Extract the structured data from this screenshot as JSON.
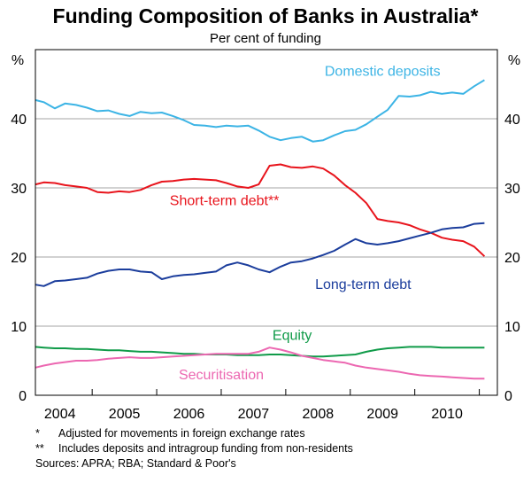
{
  "chart_data": {
    "type": "line",
    "title": "Funding Composition of Banks in Australia*",
    "subtitle": "Per cent of funding",
    "y_unit": "%",
    "ylim": [
      0,
      50
    ],
    "y_ticks": [
      0,
      10,
      20,
      30,
      40
    ],
    "xlim": [
      2003.62,
      2010.78
    ],
    "x_ticks": [
      {
        "value": 2004,
        "label": "2004"
      },
      {
        "value": 2005,
        "label": "2005"
      },
      {
        "value": 2006,
        "label": "2006"
      },
      {
        "value": 2007,
        "label": "2007"
      },
      {
        "value": 2008,
        "label": "2008"
      },
      {
        "value": 2009,
        "label": "2009"
      },
      {
        "value": 2010,
        "label": "2010"
      }
    ],
    "gridlines": {
      "horizontal": [
        10,
        20,
        30,
        40,
        50
      ],
      "vertical_year_separators": [
        2004.5,
        2005.5,
        2006.5,
        2007.5,
        2008.5,
        2009.5,
        2010.5
      ]
    },
    "legend": "inline labels",
    "series": [
      {
        "name": "Domestic deposits",
        "color": "#3cb4e5",
        "label_pos": [
          2009.0,
          46.2
        ],
        "x": [
          2003.62,
          2003.75,
          2003.92,
          2004.08,
          2004.25,
          2004.42,
          2004.58,
          2004.75,
          2004.92,
          2005.08,
          2005.25,
          2005.42,
          2005.58,
          2005.75,
          2005.92,
          2006.08,
          2006.25,
          2006.42,
          2006.58,
          2006.75,
          2006.92,
          2007.08,
          2007.25,
          2007.42,
          2007.58,
          2007.75,
          2007.92,
          2008.08,
          2008.25,
          2008.42,
          2008.58,
          2008.75,
          2008.92,
          2009.08,
          2009.25,
          2009.42,
          2009.58,
          2009.75,
          2009.92,
          2010.08,
          2010.25,
          2010.42,
          2010.58
        ],
        "values": [
          42.7,
          42.4,
          41.5,
          42.2,
          42.0,
          41.6,
          41.1,
          41.2,
          40.7,
          40.4,
          41.0,
          40.8,
          40.9,
          40.4,
          39.8,
          39.1,
          39.0,
          38.8,
          39.0,
          38.9,
          39.0,
          38.3,
          37.4,
          36.9,
          37.2,
          37.4,
          36.7,
          36.9,
          37.6,
          38.2,
          38.4,
          39.2,
          40.3,
          41.3,
          43.3,
          43.2,
          43.4,
          43.9,
          43.6,
          43.8,
          43.6,
          44.7,
          45.6
        ]
      },
      {
        "name": "Short-term debt**",
        "color": "#e8141c",
        "label_pos": [
          2006.55,
          27.5
        ],
        "x": [
          2003.62,
          2003.75,
          2003.92,
          2004.08,
          2004.25,
          2004.42,
          2004.58,
          2004.75,
          2004.92,
          2005.08,
          2005.25,
          2005.42,
          2005.58,
          2005.75,
          2005.92,
          2006.08,
          2006.25,
          2006.42,
          2006.58,
          2006.75,
          2006.92,
          2007.08,
          2007.25,
          2007.42,
          2007.58,
          2007.75,
          2007.92,
          2008.08,
          2008.25,
          2008.42,
          2008.58,
          2008.75,
          2008.92,
          2009.08,
          2009.25,
          2009.42,
          2009.58,
          2009.75,
          2009.92,
          2010.08,
          2010.25,
          2010.42,
          2010.58
        ],
        "values": [
          30.5,
          30.8,
          30.7,
          30.4,
          30.2,
          30.0,
          29.4,
          29.3,
          29.5,
          29.4,
          29.7,
          30.4,
          30.9,
          31.0,
          31.2,
          31.3,
          31.2,
          31.1,
          30.7,
          30.2,
          30.0,
          30.5,
          33.2,
          33.4,
          33.0,
          32.9,
          33.1,
          32.8,
          31.8,
          30.4,
          29.3,
          27.8,
          25.5,
          25.2,
          25.0,
          24.6,
          24.0,
          23.5,
          22.8,
          22.5,
          22.3,
          21.5,
          20.1
        ]
      },
      {
        "name": "Long-term debt",
        "color": "#1b3d9c",
        "label_pos": [
          2008.7,
          15.4
        ],
        "x": [
          2003.62,
          2003.75,
          2003.92,
          2004.08,
          2004.25,
          2004.42,
          2004.58,
          2004.75,
          2004.92,
          2005.08,
          2005.25,
          2005.42,
          2005.58,
          2005.75,
          2005.92,
          2006.08,
          2006.25,
          2006.42,
          2006.58,
          2006.75,
          2006.92,
          2007.08,
          2007.25,
          2007.42,
          2007.58,
          2007.75,
          2007.92,
          2008.08,
          2008.25,
          2008.42,
          2008.58,
          2008.75,
          2008.92,
          2009.08,
          2009.25,
          2009.42,
          2009.58,
          2009.75,
          2009.92,
          2010.08,
          2010.25,
          2010.42,
          2010.58
        ],
        "values": [
          16.0,
          15.8,
          16.5,
          16.6,
          16.8,
          17.0,
          17.6,
          18.0,
          18.2,
          18.2,
          17.9,
          17.8,
          16.8,
          17.2,
          17.4,
          17.5,
          17.7,
          17.9,
          18.8,
          19.2,
          18.8,
          18.2,
          17.8,
          18.6,
          19.2,
          19.4,
          19.8,
          20.3,
          20.9,
          21.8,
          22.6,
          22.0,
          21.8,
          22.0,
          22.3,
          22.7,
          23.1,
          23.5,
          24.0,
          24.2,
          24.3,
          24.8,
          24.9
        ]
      },
      {
        "name": "Equity",
        "color": "#109b49",
        "label_pos": [
          2007.6,
          8.0
        ],
        "x": [
          2003.62,
          2003.75,
          2003.92,
          2004.08,
          2004.25,
          2004.42,
          2004.58,
          2004.75,
          2004.92,
          2005.08,
          2005.25,
          2005.42,
          2005.58,
          2005.75,
          2005.92,
          2006.08,
          2006.25,
          2006.42,
          2006.58,
          2006.75,
          2006.92,
          2007.08,
          2007.25,
          2007.42,
          2007.58,
          2007.75,
          2007.92,
          2008.08,
          2008.25,
          2008.42,
          2008.58,
          2008.75,
          2008.92,
          2009.08,
          2009.25,
          2009.42,
          2009.58,
          2009.75,
          2009.92,
          2010.08,
          2010.25,
          2010.42,
          2010.58
        ],
        "values": [
          7.0,
          6.9,
          6.8,
          6.8,
          6.7,
          6.7,
          6.6,
          6.5,
          6.5,
          6.4,
          6.3,
          6.3,
          6.2,
          6.1,
          6.0,
          6.0,
          5.9,
          5.9,
          5.9,
          5.8,
          5.8,
          5.8,
          5.9,
          5.9,
          5.8,
          5.7,
          5.6,
          5.6,
          5.7,
          5.8,
          5.9,
          6.3,
          6.6,
          6.8,
          6.9,
          7.0,
          7.0,
          7.0,
          6.9,
          6.9,
          6.9,
          6.9,
          6.9
        ]
      },
      {
        "name": "Securitisation",
        "color": "#ec67b1",
        "label_pos": [
          2006.5,
          2.3
        ],
        "x": [
          2003.62,
          2003.75,
          2003.92,
          2004.08,
          2004.25,
          2004.42,
          2004.58,
          2004.75,
          2004.92,
          2005.08,
          2005.25,
          2005.42,
          2005.58,
          2005.75,
          2005.92,
          2006.08,
          2006.25,
          2006.42,
          2006.58,
          2006.75,
          2006.92,
          2007.08,
          2007.25,
          2007.42,
          2007.58,
          2007.75,
          2007.92,
          2008.08,
          2008.25,
          2008.42,
          2008.58,
          2008.75,
          2008.92,
          2009.08,
          2009.25,
          2009.42,
          2009.58,
          2009.75,
          2009.92,
          2010.08,
          2010.25,
          2010.42,
          2010.58
        ],
        "values": [
          4.0,
          4.3,
          4.6,
          4.8,
          5.0,
          5.0,
          5.1,
          5.3,
          5.4,
          5.5,
          5.4,
          5.4,
          5.5,
          5.6,
          5.7,
          5.8,
          5.9,
          6.0,
          6.0,
          6.0,
          6.0,
          6.3,
          6.9,
          6.6,
          6.2,
          5.7,
          5.4,
          5.1,
          4.9,
          4.7,
          4.3,
          4.0,
          3.8,
          3.6,
          3.4,
          3.1,
          2.9,
          2.8,
          2.7,
          2.6,
          2.5,
          2.4,
          2.4
        ]
      }
    ],
    "footnotes": [
      {
        "marker": "*",
        "text": "Adjusted for movements in foreign exchange rates"
      },
      {
        "marker": "**",
        "text": "Includes deposits and intragroup funding from non-residents"
      }
    ],
    "sources": "Sources: APRA; RBA; Standard & Poor's"
  }
}
